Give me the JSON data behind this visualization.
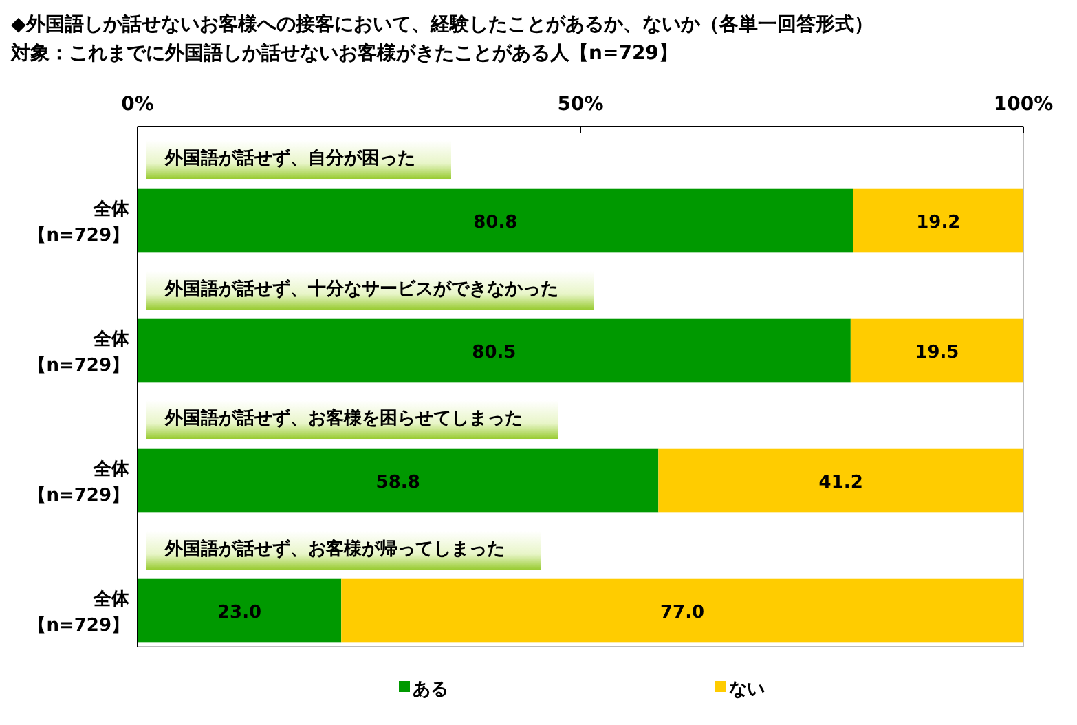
{
  "chart_data": {
    "type": "bar",
    "orientation": "horizontal",
    "stacked": true,
    "title": "◆外国語しか話せないお客様への接客において、経験したことがあるか、ないか（各単一回答形式）",
    "subtitle": "対象：これまでに外国語しか話せないお客様がきたことがある人【n=729】",
    "categories": [
      "全体【n=729】",
      "全体【n=729】",
      "全体【n=729】",
      "全体【n=729】"
    ],
    "annotations": [
      "外国語が話せず、自分が困った",
      "外国語が話せず、十分なサービスができなかった",
      "外国語が話せず、お客様を困らせてしまった",
      "外国語が話せず、お客様が帰ってしまった"
    ],
    "series": [
      {
        "name": "ある",
        "color": "#009900",
        "values": [
          80.8,
          80.5,
          58.8,
          23.0
        ],
        "value_labels": [
          "80.8",
          "80.5",
          "58.8",
          "23.0"
        ]
      },
      {
        "name": "ない",
        "color": "#ffcc00",
        "values": [
          19.2,
          19.5,
          41.2,
          77.0
        ],
        "value_labels": [
          "19.2",
          "19.5",
          "41.2",
          "77.0"
        ]
      }
    ],
    "xlim": [
      0,
      100
    ],
    "xticks": [
      {
        "value": 0,
        "label": "0%"
      },
      {
        "value": 50,
        "label": "50%"
      },
      {
        "value": 100,
        "label": "100%"
      }
    ],
    "legend": "bottom"
  }
}
